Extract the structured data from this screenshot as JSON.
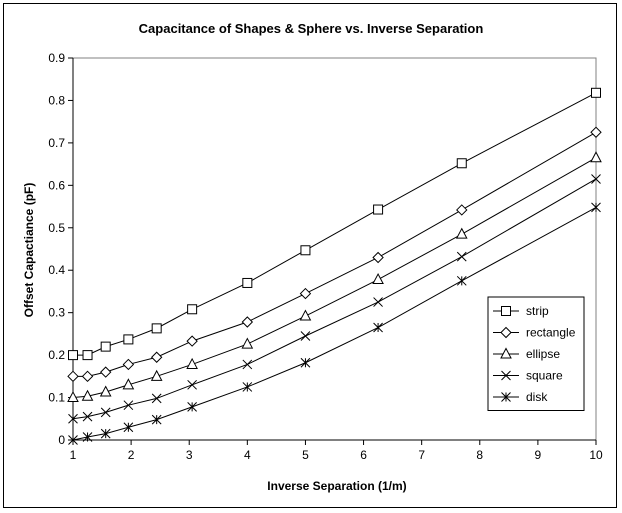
{
  "chart_data": {
    "type": "line",
    "title": "Capacitance of Shapes & Sphere vs. Inverse Separation",
    "xlabel": "Inverse Separation (1/m)",
    "ylabel": "Offset Capactiance (pF)",
    "xlim": [
      1,
      10
    ],
    "ylim": [
      0,
      0.9
    ],
    "xticks": [
      1,
      2,
      3,
      4,
      5,
      6,
      7,
      8,
      9,
      10
    ],
    "yticks": [
      0,
      0.1,
      0.2,
      0.3,
      0.4,
      0.5,
      0.6,
      0.7,
      0.8,
      0.9
    ],
    "ytick_labels": [
      "0",
      "0.1",
      "0.2",
      "0.3",
      "0.4",
      "0.5",
      "0.6",
      "0.7",
      "0.8",
      "0.9"
    ],
    "xtick_labels": [
      "1",
      "2",
      "3",
      "4",
      "5",
      "6",
      "7",
      "8",
      "9",
      "10"
    ],
    "grid": false,
    "legend_position": "bottom-right",
    "x": [
      1,
      1.25,
      1.5625,
      1.953,
      2.44,
      3.05,
      4,
      5,
      6.25,
      7.69,
      10
    ],
    "series": [
      {
        "name": "strip",
        "marker": "square",
        "values": [
          0.2,
          0.2,
          0.22,
          0.237,
          0.263,
          0.308,
          0.37,
          0.447,
          0.543,
          0.652,
          0.818
        ]
      },
      {
        "name": "rectangle",
        "marker": "diamond",
        "values": [
          0.15,
          0.15,
          0.16,
          0.178,
          0.195,
          0.233,
          0.278,
          0.345,
          0.43,
          0.542,
          0.725
        ]
      },
      {
        "name": "ellipse",
        "marker": "triangle",
        "values": [
          0.1,
          0.103,
          0.113,
          0.13,
          0.15,
          0.178,
          0.226,
          0.292,
          0.378,
          0.485,
          0.665
        ]
      },
      {
        "name": "square",
        "marker": "x",
        "values": [
          0.05,
          0.055,
          0.065,
          0.082,
          0.098,
          0.13,
          0.178,
          0.245,
          0.325,
          0.432,
          0.615
        ]
      },
      {
        "name": "disk",
        "marker": "asterisk",
        "values": [
          0,
          0.007,
          0.015,
          0.03,
          0.048,
          0.078,
          0.125,
          0.182,
          0.265,
          0.375,
          0.548
        ]
      }
    ]
  }
}
